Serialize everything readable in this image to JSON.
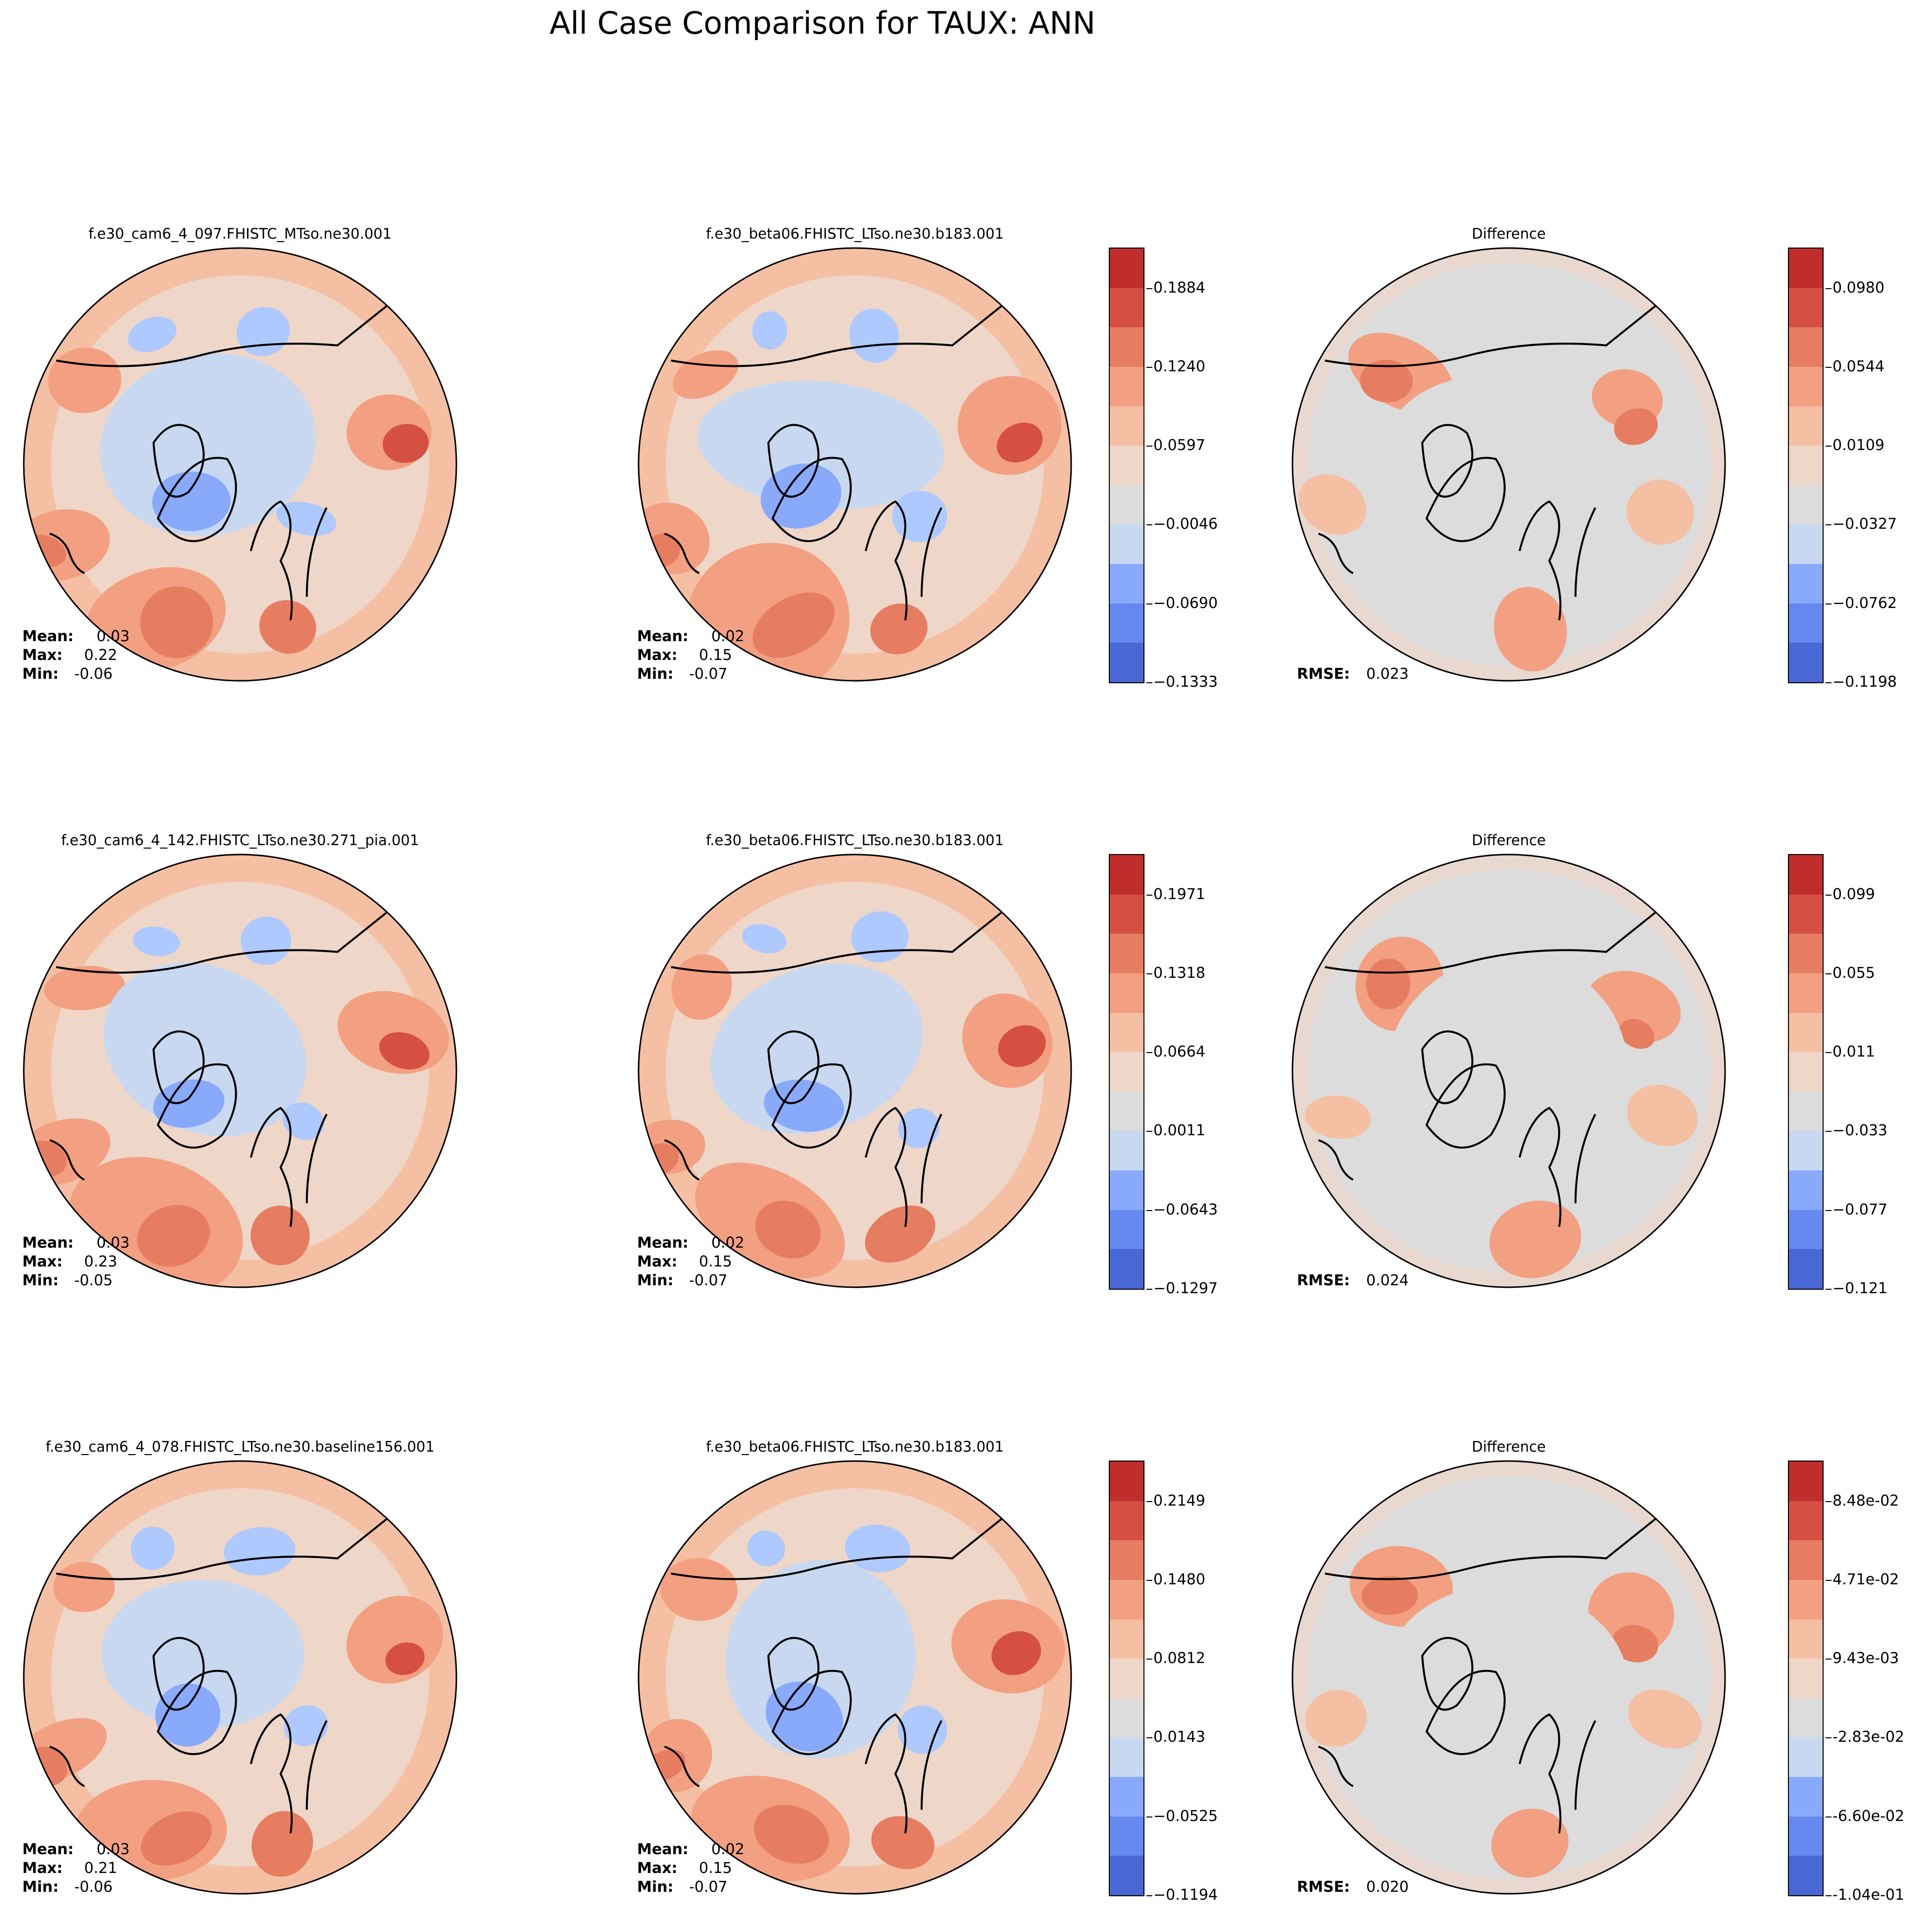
{
  "suptitle": "All Case Comparison for TAUX: ANN",
  "rows": [
    {
      "test_title": "f.e30_cam6_4_097.FHISTC_MTso.ne30.001",
      "ref_title": "f.e30_beta06.FHISTC_LTso.ne30.b183.001",
      "diff_title": "Difference",
      "test_stats": {
        "mean": "0.03",
        "max": "0.22",
        "min": "-0.06"
      },
      "ref_stats": {
        "mean": "0.02",
        "max": "0.15",
        "min": "-0.07"
      },
      "rmse": "0.023",
      "cbar_ticks": [
        "0.1884",
        "0.1240",
        "0.0597",
        "−0.0046",
        "−0.0690",
        "−0.1333"
      ],
      "diff_cbar_ticks": [
        "0.0980",
        "0.0544",
        "0.0109",
        "−0.0327",
        "−0.0762",
        "−0.1198"
      ]
    },
    {
      "test_title": "f.e30_cam6_4_142.FHISTC_LTso.ne30.271_pia.001",
      "ref_title": "f.e30_beta06.FHISTC_LTso.ne30.b183.001",
      "diff_title": "Difference",
      "test_stats": {
        "mean": "0.03",
        "max": "0.23",
        "min": "-0.05"
      },
      "ref_stats": {
        "mean": "0.02",
        "max": "0.15",
        "min": "-0.07"
      },
      "rmse": "0.024",
      "cbar_ticks": [
        "0.1971",
        "0.1318",
        "0.0664",
        "0.0011",
        "−0.0643",
        "−0.1297"
      ],
      "diff_cbar_ticks": [
        "0.099",
        "0.055",
        "0.011",
        "−0.033",
        "−0.077",
        "−0.121"
      ]
    },
    {
      "test_title": "f.e30_cam6_4_078.FHISTC_LTso.ne30.baseline156.001",
      "ref_title": "f.e30_beta06.FHISTC_LTso.ne30.b183.001",
      "diff_title": "Difference",
      "test_stats": {
        "mean": "0.03",
        "max": "0.21",
        "min": "-0.06"
      },
      "ref_stats": {
        "mean": "0.02",
        "max": "0.15",
        "min": "-0.07"
      },
      "rmse": "0.020",
      "cbar_ticks": [
        "0.2149",
        "0.1480",
        "0.0812",
        "0.0143",
        "−0.0525",
        "−0.1194"
      ],
      "diff_cbar_ticks": [
        "8.48e-02",
        "4.71e-02",
        "9.43e-03",
        "-2.83e-02",
        "-6.60e-02",
        "-1.04e-01"
      ]
    }
  ],
  "labels": {
    "mean": "Mean:",
    "max": "Max:",
    "min": "Min:",
    "rmse": "RMSE:"
  },
  "colormap": [
    "#4a67d6",
    "#6788ee",
    "#89a9fb",
    "#aec9fd",
    "#c8d8f0",
    "#dcdcdc",
    "#eed6c9",
    "#f5bfa3",
    "#f3a082",
    "#e67d61",
    "#d55042",
    "#c02d2d"
  ],
  "chart_data": {
    "type": "heatmap",
    "projection": "North Polar Stereographic",
    "variable": "TAUX",
    "season": "ANN",
    "panels": [
      {
        "row": 1,
        "title": "f.e30_cam6_4_097.FHISTC_MTso.ne30.001",
        "mean": 0.03,
        "max": 0.22,
        "min": -0.06
      },
      {
        "row": 1,
        "title": "f.e30_beta06.FHISTC_LTso.ne30.b183.001",
        "mean": 0.02,
        "max": 0.15,
        "min": -0.07
      },
      {
        "row": 1,
        "title": "Difference",
        "rmse": 0.023
      },
      {
        "row": 2,
        "title": "f.e30_cam6_4_142.FHISTC_LTso.ne30.271_pia.001",
        "mean": 0.03,
        "max": 0.23,
        "min": -0.05
      },
      {
        "row": 2,
        "title": "f.e30_beta06.FHISTC_LTso.ne30.b183.001",
        "mean": 0.02,
        "max": 0.15,
        "min": -0.07
      },
      {
        "row": 2,
        "title": "Difference",
        "rmse": 0.024
      },
      {
        "row": 3,
        "title": "f.e30_cam6_4_078.FHISTC_LTso.ne30.baseline156.001",
        "mean": 0.03,
        "max": 0.21,
        "min": -0.06
      },
      {
        "row": 3,
        "title": "f.e30_beta06.FHISTC_LTso.ne30.b183.001",
        "mean": 0.02,
        "max": 0.15,
        "min": -0.07
      },
      {
        "row": 3,
        "title": "Difference",
        "rmse": 0.02
      }
    ]
  }
}
